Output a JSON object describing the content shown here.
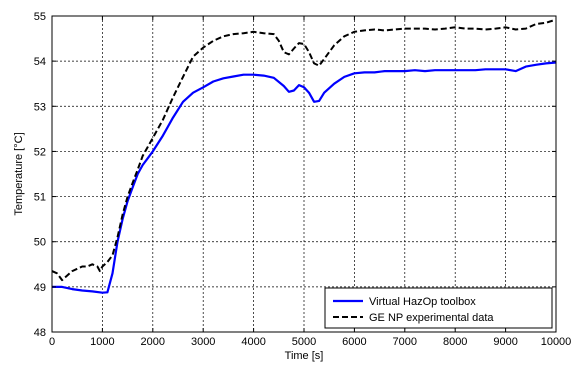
{
  "chart_data": {
    "type": "line",
    "title": "",
    "xlabel": "Time [s]",
    "ylabel": "Temperature [°C]",
    "xlim": [
      0,
      10000
    ],
    "ylim": [
      48,
      55
    ],
    "xticks": [
      0,
      1000,
      2000,
      3000,
      4000,
      5000,
      6000,
      7000,
      8000,
      9000,
      10000
    ],
    "yticks": [
      48,
      49,
      50,
      51,
      52,
      53,
      54,
      55
    ],
    "grid": true,
    "legend_position": "bottom-right",
    "series": [
      {
        "name": "Virtual HazOp toolbox",
        "color": "#0000ff",
        "style": "solid",
        "points": [
          [
            0,
            49.0
          ],
          [
            200,
            49.0
          ],
          [
            400,
            48.95
          ],
          [
            600,
            48.92
          ],
          [
            800,
            48.9
          ],
          [
            1000,
            48.87
          ],
          [
            1100,
            48.88
          ],
          [
            1200,
            49.3
          ],
          [
            1300,
            50.0
          ],
          [
            1400,
            50.5
          ],
          [
            1500,
            50.9
          ],
          [
            1600,
            51.2
          ],
          [
            1700,
            51.5
          ],
          [
            1800,
            51.7
          ],
          [
            1900,
            51.85
          ],
          [
            2000,
            52.0
          ],
          [
            2200,
            52.35
          ],
          [
            2400,
            52.75
          ],
          [
            2600,
            53.1
          ],
          [
            2800,
            53.3
          ],
          [
            3000,
            53.42
          ],
          [
            3200,
            53.55
          ],
          [
            3400,
            53.62
          ],
          [
            3600,
            53.66
          ],
          [
            3800,
            53.7
          ],
          [
            4000,
            53.7
          ],
          [
            4200,
            53.68
          ],
          [
            4400,
            53.63
          ],
          [
            4600,
            53.45
          ],
          [
            4700,
            53.32
          ],
          [
            4800,
            53.35
          ],
          [
            4900,
            53.47
          ],
          [
            5000,
            53.42
          ],
          [
            5100,
            53.3
          ],
          [
            5200,
            53.1
          ],
          [
            5300,
            53.12
          ],
          [
            5400,
            53.3
          ],
          [
            5600,
            53.5
          ],
          [
            5800,
            53.65
          ],
          [
            6000,
            53.73
          ],
          [
            6200,
            53.75
          ],
          [
            6400,
            53.75
          ],
          [
            6600,
            53.78
          ],
          [
            6800,
            53.78
          ],
          [
            7000,
            53.78
          ],
          [
            7200,
            53.8
          ],
          [
            7400,
            53.78
          ],
          [
            7600,
            53.8
          ],
          [
            7800,
            53.8
          ],
          [
            8000,
            53.8
          ],
          [
            8200,
            53.8
          ],
          [
            8400,
            53.8
          ],
          [
            8600,
            53.82
          ],
          [
            8800,
            53.82
          ],
          [
            9000,
            53.82
          ],
          [
            9200,
            53.78
          ],
          [
            9400,
            53.88
          ],
          [
            9600,
            53.92
          ],
          [
            9800,
            53.95
          ],
          [
            10000,
            53.97
          ]
        ]
      },
      {
        "name": "GE NP experimental data",
        "color": "#000000",
        "style": "dashed",
        "points": [
          [
            0,
            49.35
          ],
          [
            100,
            49.3
          ],
          [
            200,
            49.15
          ],
          [
            300,
            49.25
          ],
          [
            400,
            49.35
          ],
          [
            500,
            49.4
          ],
          [
            600,
            49.45
          ],
          [
            700,
            49.45
          ],
          [
            800,
            49.5
          ],
          [
            900,
            49.45
          ],
          [
            950,
            49.35
          ],
          [
            1000,
            49.45
          ],
          [
            1100,
            49.55
          ],
          [
            1200,
            49.7
          ],
          [
            1300,
            50.1
          ],
          [
            1400,
            50.6
          ],
          [
            1500,
            51.0
          ],
          [
            1600,
            51.3
          ],
          [
            1700,
            51.6
          ],
          [
            1800,
            51.9
          ],
          [
            1900,
            52.1
          ],
          [
            2000,
            52.3
          ],
          [
            2200,
            52.7
          ],
          [
            2400,
            53.2
          ],
          [
            2600,
            53.65
          ],
          [
            2800,
            54.1
          ],
          [
            3000,
            54.3
          ],
          [
            3200,
            54.45
          ],
          [
            3400,
            54.55
          ],
          [
            3600,
            54.6
          ],
          [
            3800,
            54.62
          ],
          [
            4000,
            54.65
          ],
          [
            4200,
            54.62
          ],
          [
            4400,
            54.6
          ],
          [
            4500,
            54.45
          ],
          [
            4600,
            54.2
          ],
          [
            4700,
            54.15
          ],
          [
            4800,
            54.28
          ],
          [
            4900,
            54.4
          ],
          [
            5000,
            54.38
          ],
          [
            5100,
            54.2
          ],
          [
            5200,
            53.95
          ],
          [
            5300,
            53.9
          ],
          [
            5400,
            54.05
          ],
          [
            5600,
            54.35
          ],
          [
            5800,
            54.55
          ],
          [
            6000,
            54.65
          ],
          [
            6200,
            54.68
          ],
          [
            6400,
            54.7
          ],
          [
            6600,
            54.68
          ],
          [
            6800,
            54.7
          ],
          [
            7000,
            54.72
          ],
          [
            7200,
            54.72
          ],
          [
            7400,
            54.72
          ],
          [
            7600,
            54.7
          ],
          [
            7800,
            54.72
          ],
          [
            8000,
            54.75
          ],
          [
            8200,
            54.72
          ],
          [
            8400,
            54.72
          ],
          [
            8600,
            54.7
          ],
          [
            8800,
            54.72
          ],
          [
            9000,
            54.75
          ],
          [
            9200,
            54.7
          ],
          [
            9400,
            54.72
          ],
          [
            9600,
            54.82
          ],
          [
            9800,
            54.85
          ],
          [
            10000,
            54.92
          ]
        ]
      }
    ]
  }
}
